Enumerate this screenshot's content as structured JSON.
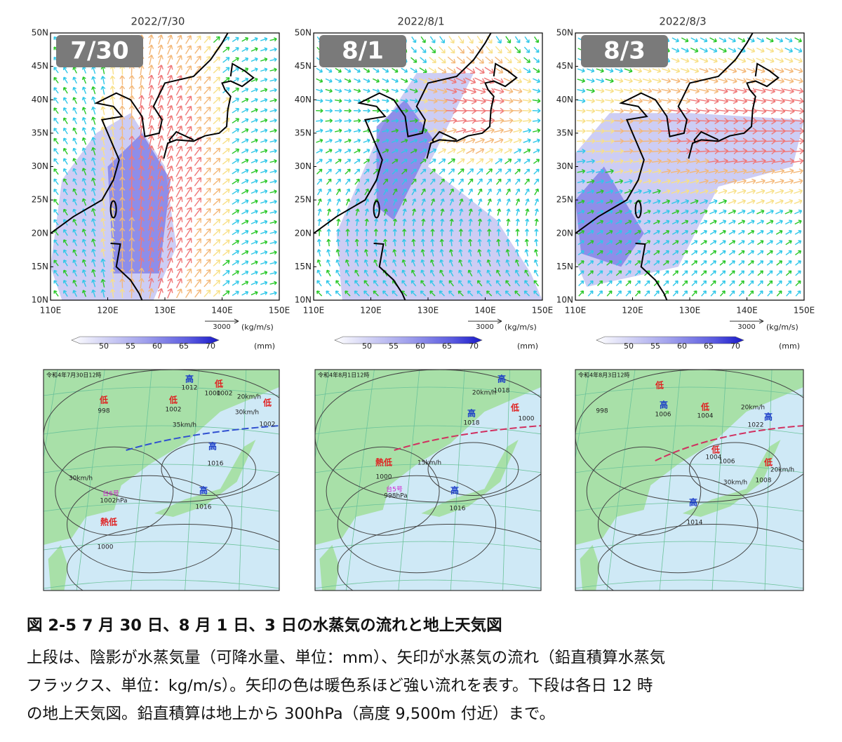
{
  "panels": [
    {
      "date": "2022/7/30",
      "badge": "7/30",
      "lat_labels": [
        "50N",
        "45N",
        "40N",
        "35N",
        "30N",
        "25N",
        "20N",
        "15N",
        "10N"
      ],
      "lon_labels": [
        "110E",
        "120E",
        "130E",
        "140E",
        "150E"
      ],
      "vector_ref": "3000",
      "vector_unit": "(kg/m/s)",
      "colorbar_ticks": [
        "50",
        "55",
        "60",
        "65",
        "70"
      ],
      "colorbar_unit": "(mm)",
      "weather_map": {
        "header": "令和4年7月30日12時",
        "labels": [
          {
            "text": "高",
            "color": "#1a3cc8"
          },
          {
            "text": "1012",
            "color": "#222222"
          },
          {
            "text": "低",
            "color": "#e02020"
          },
          {
            "text": "1002",
            "color": "#222222"
          },
          {
            "text": "低",
            "color": "#e02020"
          },
          {
            "text": "1000",
            "color": "#222222"
          },
          {
            "text": "1002",
            "color": "#222222"
          },
          {
            "text": "低",
            "color": "#e02020"
          },
          {
            "text": "1002",
            "color": "#222222"
          },
          {
            "text": "高",
            "color": "#1a3cc8"
          },
          {
            "text": "1016",
            "color": "#222222"
          },
          {
            "text": "高",
            "color": "#1a3cc8"
          },
          {
            "text": "1016",
            "color": "#222222"
          },
          {
            "text": "熱低",
            "color": "#e02020"
          },
          {
            "text": "1000",
            "color": "#222222"
          },
          {
            "text": "台6号",
            "color": "#d020d0"
          },
          {
            "text": "1002hPa",
            "color": "#222222"
          },
          {
            "text": "低",
            "color": "#e02020"
          },
          {
            "text": "998",
            "color": "#222222"
          },
          {
            "text": "30km/h",
            "color": "#222222"
          },
          {
            "text": "35km/h",
            "color": "#222222"
          },
          {
            "text": "20km/h",
            "color": "#222222"
          },
          {
            "text": "30km/h",
            "color": "#222222"
          }
        ]
      }
    },
    {
      "date": "2022/8/1",
      "badge": "8/1",
      "lat_labels": [
        "50N",
        "45N",
        "40N",
        "35N",
        "30N",
        "25N",
        "20N",
        "15N",
        "10N"
      ],
      "lon_labels": [
        "110E",
        "120E",
        "130E",
        "140E",
        "150E"
      ],
      "vector_ref": "3000",
      "vector_unit": "(kg/m/s)",
      "colorbar_ticks": [
        "50",
        "55",
        "60",
        "65",
        "70"
      ],
      "colorbar_unit": "(mm)",
      "weather_map": {
        "header": "令和4年8月1日12時",
        "labels": [
          {
            "text": "高",
            "color": "#1a3cc8"
          },
          {
            "text": "1018",
            "color": "#222222"
          },
          {
            "text": "高",
            "color": "#1a3cc8"
          },
          {
            "text": "1018",
            "color": "#222222"
          },
          {
            "text": "低",
            "color": "#e02020"
          },
          {
            "text": "1000",
            "color": "#222222"
          },
          {
            "text": "熱低",
            "color": "#e02020"
          },
          {
            "text": "1000",
            "color": "#222222"
          },
          {
            "text": "台5号",
            "color": "#d020d0"
          },
          {
            "text": "998hPa",
            "color": "#222222"
          },
          {
            "text": "高",
            "color": "#1a3cc8"
          },
          {
            "text": "1016",
            "color": "#222222"
          },
          {
            "text": "20km/h",
            "color": "#222222"
          },
          {
            "text": "15km/h",
            "color": "#222222"
          }
        ]
      }
    },
    {
      "date": "2022/8/3",
      "badge": "8/3",
      "lat_labels": [
        "50N",
        "45N",
        "40N",
        "35N",
        "30N",
        "25N",
        "20N",
        "15N",
        "10N"
      ],
      "lon_labels": [
        "110E",
        "120E",
        "130E",
        "140E",
        "150E"
      ],
      "vector_ref": "3000",
      "vector_unit": "(kg/m/s)",
      "colorbar_ticks": [
        "50",
        "55",
        "60",
        "65",
        "70"
      ],
      "colorbar_unit": "(mm)",
      "weather_map": {
        "header": "令和4年8月3日12時",
        "labels": [
          {
            "text": "低",
            "color": "#e02020"
          },
          {
            "text": "998",
            "color": "#222222"
          },
          {
            "text": "高",
            "color": "#1a3cc8"
          },
          {
            "text": "1006",
            "color": "#222222"
          },
          {
            "text": "低",
            "color": "#e02020"
          },
          {
            "text": "1004",
            "color": "#222222"
          },
          {
            "text": "高",
            "color": "#1a3cc8"
          },
          {
            "text": "1022",
            "color": "#222222"
          },
          {
            "text": "低",
            "color": "#e02020"
          },
          {
            "text": "1004",
            "color": "#222222"
          },
          {
            "text": "1006",
            "color": "#222222"
          },
          {
            "text": "低",
            "color": "#e02020"
          },
          {
            "text": "1008",
            "color": "#222222"
          },
          {
            "text": "高",
            "color": "#1a3cc8"
          },
          {
            "text": "1014",
            "color": "#222222"
          },
          {
            "text": "20km/h",
            "color": "#222222"
          },
          {
            "text": "30km/h",
            "color": "#222222"
          },
          {
            "text": "20km/h",
            "color": "#222222"
          }
        ]
      }
    }
  ],
  "caption": {
    "title": "図 2-5 7 月 30 日、8 月 1 日、3 日の水蒸気の流れと地上天気図",
    "lines": [
      "上段は、陰影が水蒸気量（可降水量、単位：mm）、矢印が水蒸気の流れ（鉛直積算水蒸気",
      "フラックス、単位：kg/m/s）。矢印の色は暖色系ほど強い流れを表す。下段は各日 12 時",
      "の地上天気図。鉛直積算は地上から 300hPa（高度 9,500m 付近）まで。"
    ]
  }
}
